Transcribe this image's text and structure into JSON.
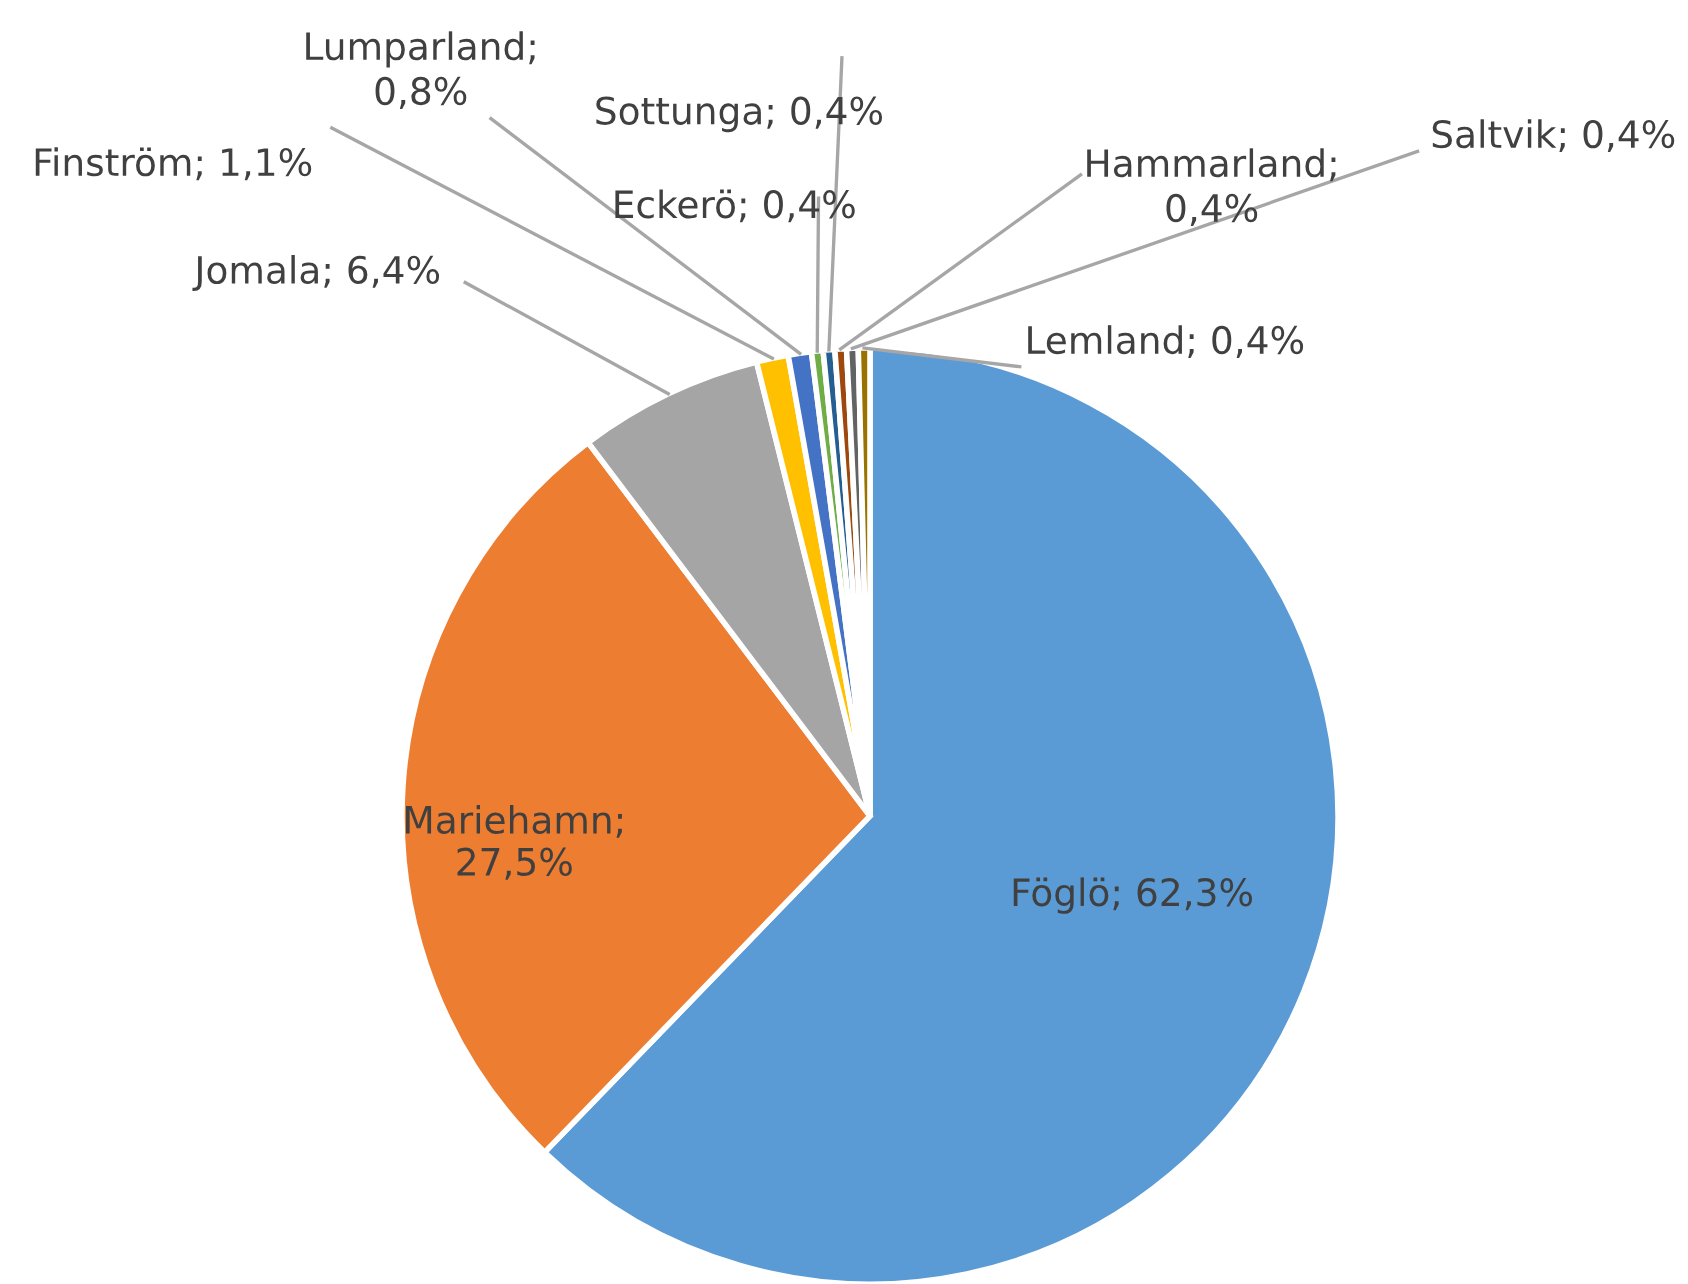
{
  "chart_data": {
    "type": "pie",
    "categories": [
      "Föglö",
      "Mariehamn",
      "Jomala",
      "Finström",
      "Lumparland",
      "Eckerö",
      "Sottunga",
      "Hammarland",
      "Saltvik",
      "Lemland"
    ],
    "values": [
      62.3,
      27.5,
      6.4,
      1.1,
      0.8,
      0.4,
      0.4,
      0.4,
      0.4,
      0.4
    ],
    "colors": [
      "#5b9bd5",
      "#ed7d31",
      "#a5a5a5",
      "#ffc000",
      "#4472c4",
      "#70ad47",
      "#255e91",
      "#9e480e",
      "#636363",
      "#997300"
    ],
    "value_labels": [
      "; 62,3%",
      ";\n27,5%",
      "; 6,4%",
      "; 1,1%",
      ";\n0,8%",
      "; 0,4%",
      "; 0,4%",
      ";\n0,4%",
      "; 0,4%",
      "; 0,4%"
    ],
    "legend": false
  }
}
